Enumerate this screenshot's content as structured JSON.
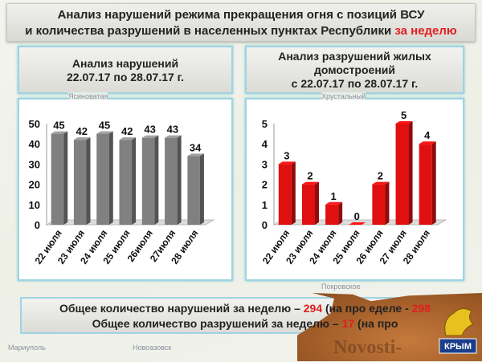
{
  "header": {
    "title_line1": "Анализ нарушений режима прекращения огня с позиций ВСУ",
    "title_line2": "и количества разрушений в населенных пунктах Республики",
    "title_highlight": "за неделю"
  },
  "panels": {
    "left": {
      "line1": "Анализ нарушений",
      "line2": "22.07.17 по 28.07.17 г."
    },
    "right": {
      "line1": "Анализ разрушений жилых",
      "line2": "домостроений",
      "line3": "с 22.07.17 по 28.07.17 г."
    }
  },
  "map_labels": [
    "Ясиноватая",
    "Хрустальный",
    "Мариуполь",
    "Новоазовск",
    "Покровское"
  ],
  "summary": {
    "line1_prefix": "Общее количество нарушений за неделю –",
    "line1_value": "294",
    "line1_mid": "(на про",
    "line1_tail": "еделе -",
    "line1_prev": "298",
    "line2_prefix": "Общее количество разрушений за неделю –",
    "line2_value": "17",
    "line2_mid": "(на про"
  },
  "watermark": "Novosti-",
  "logo_text": "КРЫМ",
  "colors": {
    "accent": "#e02020",
    "bar_grey": "#808080",
    "bar_red": "#e01010"
  },
  "chart_data": [
    {
      "type": "bar",
      "categories": [
        "22 июля",
        "23 июля",
        "24 июля",
        "25 июля",
        "26июля",
        "27июля",
        "28 июля"
      ],
      "values": [
        45,
        42,
        45,
        42,
        43,
        43,
        34
      ],
      "ylim": [
        0,
        50
      ],
      "yticks": [
        0,
        10,
        20,
        30,
        40,
        50
      ],
      "color": "#808080"
    },
    {
      "type": "bar",
      "categories": [
        "22 июля",
        "23 июля",
        "24 июля",
        "25 июля",
        "26 июля",
        "27 июля",
        "28 июля"
      ],
      "values": [
        3,
        2,
        1,
        0,
        2,
        5,
        4
      ],
      "ylim": [
        0,
        5
      ],
      "yticks": [
        0,
        1,
        2,
        3,
        4,
        5
      ],
      "color": "#e01010"
    }
  ]
}
